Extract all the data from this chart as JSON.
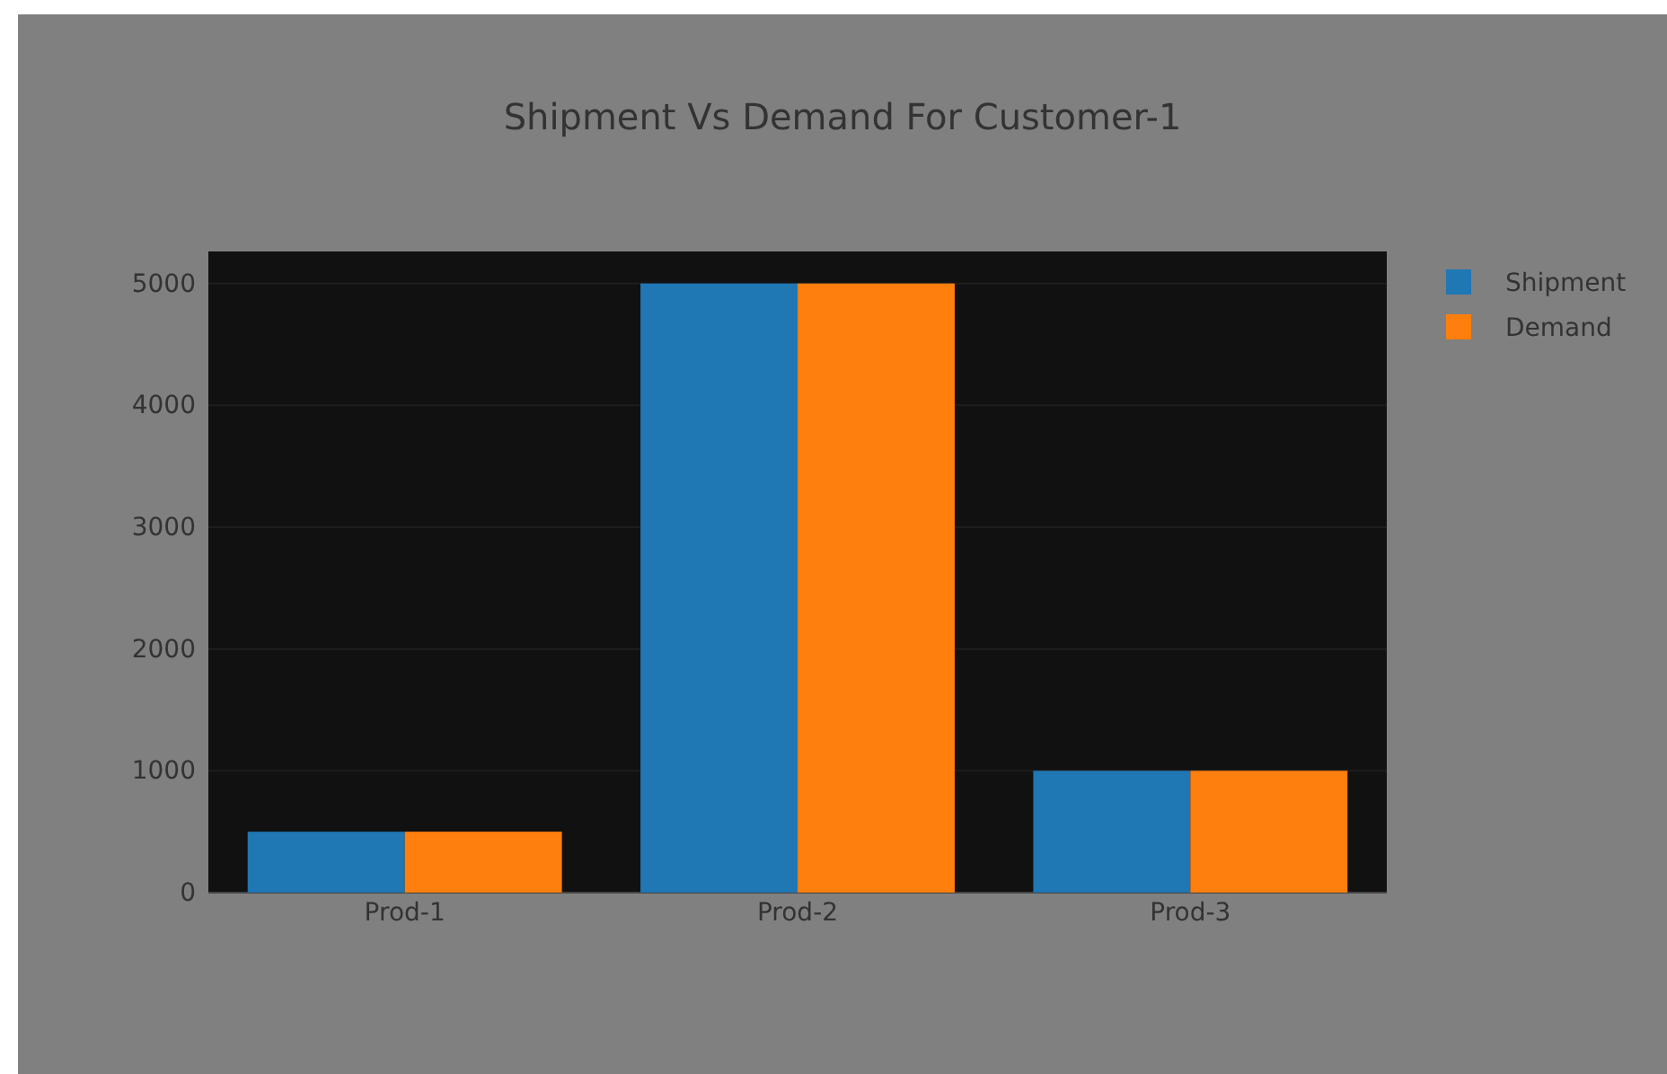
{
  "chart_data": {
    "type": "bar",
    "title": "Shipment Vs Demand For Customer-1",
    "categories": [
      "Prod-1",
      "Prod-2",
      "Prod-3"
    ],
    "series": [
      {
        "name": "Shipment",
        "color": "#1f77b4",
        "values": [
          500,
          5000,
          1000
        ]
      },
      {
        "name": "Demand",
        "color": "#ff7f0e",
        "values": [
          500,
          5000,
          1000
        ]
      }
    ],
    "ylim": [
      0,
      5263
    ],
    "yticks": [
      0,
      1000,
      2000,
      3000,
      4000,
      5000
    ],
    "grid": "y",
    "legend": "top right"
  }
}
